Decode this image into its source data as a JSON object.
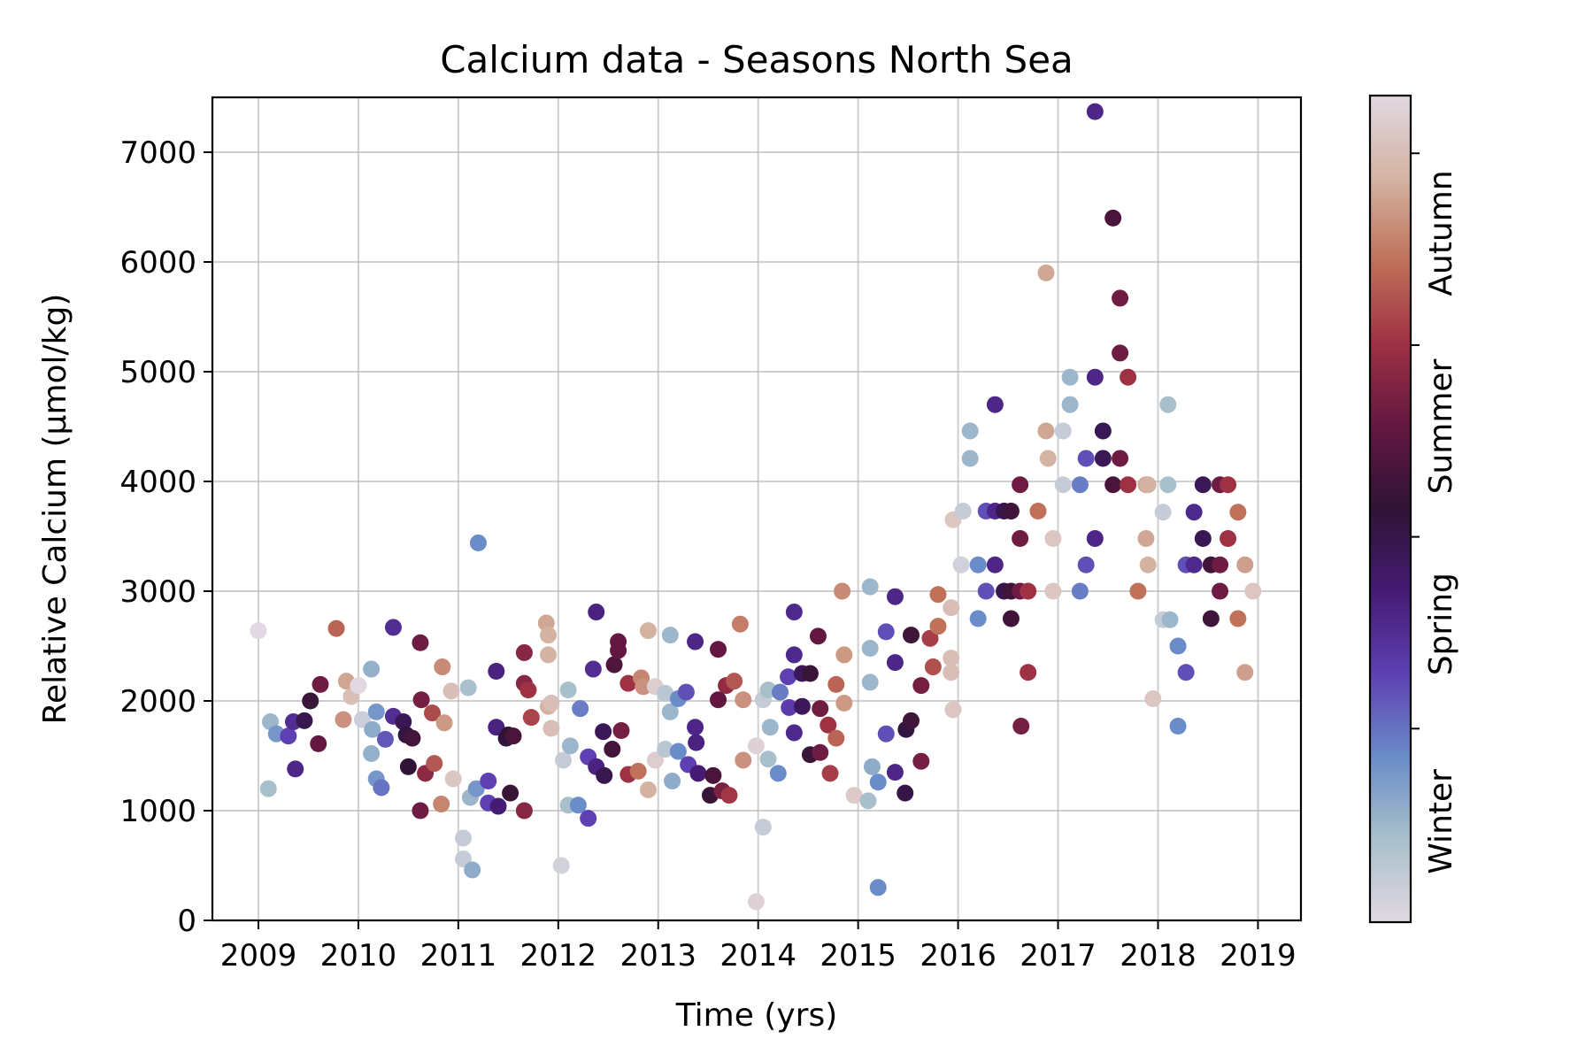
{
  "chart_data": {
    "type": "scatter",
    "title": "Calcium data - Seasons North Sea",
    "xlabel": "Time (yrs)",
    "ylabel": "Relative Calcium (µmol/kg)",
    "xlim": [
      2008.54,
      2019.43
    ],
    "ylim": [
      0,
      7500
    ],
    "xticks": [
      2009,
      2010,
      2011,
      2012,
      2013,
      2014,
      2015,
      2016,
      2017,
      2018,
      2019
    ],
    "yticks": [
      0,
      1000,
      2000,
      3000,
      4000,
      5000,
      6000,
      7000
    ],
    "grid": true,
    "colorbar": {
      "colormap": "twilight_shifted",
      "labels": [
        "Winter",
        "Spring",
        "Summer",
        "Autumn"
      ],
      "colors": [
        "#e1d8e1",
        "#a8c0cc",
        "#6a8cc8",
        "#5e40b2",
        "#451b74",
        "#2f1436",
        "#631741",
        "#9e3144",
        "#c07159",
        "#d4b3a3",
        "#e1d8e1"
      ]
    },
    "points": [
      [
        2009.0,
        2640
      ],
      [
        2009.1,
        1200
      ],
      [
        2009.12,
        1810
      ],
      [
        2009.18,
        1700
      ],
      [
        2009.3,
        1680
      ],
      [
        2009.35,
        1810
      ],
      [
        2009.37,
        1380
      ],
      [
        2009.46,
        1820
      ],
      [
        2009.52,
        2000
      ],
      [
        2009.6,
        1610
      ],
      [
        2009.62,
        2150
      ],
      [
        2009.78,
        2660
      ],
      [
        2009.85,
        1830
      ],
      [
        2009.88,
        2180
      ],
      [
        2009.93,
        2040
      ],
      [
        2010.0,
        2140
      ],
      [
        2010.04,
        1830
      ],
      [
        2010.13,
        2290
      ],
      [
        2010.13,
        1520
      ],
      [
        2010.14,
        1740
      ],
      [
        2010.18,
        1900
      ],
      [
        2010.18,
        1290
      ],
      [
        2010.23,
        1210
      ],
      [
        2010.27,
        1650
      ],
      [
        2010.35,
        2670
      ],
      [
        2010.35,
        1860
      ],
      [
        2010.45,
        1810
      ],
      [
        2010.48,
        1690
      ],
      [
        2010.5,
        1400
      ],
      [
        2010.54,
        1660
      ],
      [
        2010.62,
        2530
      ],
      [
        2010.63,
        2010
      ],
      [
        2010.62,
        1000
      ],
      [
        2010.67,
        1340
      ],
      [
        2010.74,
        1890
      ],
      [
        2010.76,
        1430
      ],
      [
        2010.84,
        2310
      ],
      [
        2010.86,
        1800
      ],
      [
        2010.83,
        1060
      ],
      [
        2010.93,
        2090
      ],
      [
        2010.95,
        1290
      ],
      [
        2011.05,
        750
      ],
      [
        2011.05,
        560
      ],
      [
        2011.1,
        2120
      ],
      [
        2011.12,
        1120
      ],
      [
        2011.14,
        460
      ],
      [
        2011.18,
        1200
      ],
      [
        2011.2,
        3440
      ],
      [
        2011.3,
        1270
      ],
      [
        2011.3,
        1070
      ],
      [
        2011.38,
        2270
      ],
      [
        2011.38,
        1760
      ],
      [
        2011.4,
        1040
      ],
      [
        2011.48,
        1660
      ],
      [
        2011.5,
        1690
      ],
      [
        2011.52,
        1160
      ],
      [
        2011.55,
        1680
      ],
      [
        2011.66,
        1000
      ],
      [
        2011.66,
        2440
      ],
      [
        2011.66,
        2160
      ],
      [
        2011.7,
        2100
      ],
      [
        2011.73,
        1850
      ],
      [
        2011.88,
        2710
      ],
      [
        2011.9,
        2600
      ],
      [
        2011.9,
        2420
      ],
      [
        2011.9,
        1950
      ],
      [
        2011.93,
        1750
      ],
      [
        2011.93,
        1980
      ],
      [
        2012.03,
        500
      ],
      [
        2012.05,
        1460
      ],
      [
        2012.1,
        2100
      ],
      [
        2012.1,
        1050
      ],
      [
        2012.12,
        1590
      ],
      [
        2012.2,
        1050
      ],
      [
        2012.22,
        1930
      ],
      [
        2012.3,
        930
      ],
      [
        2012.3,
        1490
      ],
      [
        2012.38,
        2810
      ],
      [
        2012.35,
        2290
      ],
      [
        2012.38,
        1400
      ],
      [
        2012.45,
        1720
      ],
      [
        2012.46,
        1320
      ],
      [
        2012.54,
        1560
      ],
      [
        2012.56,
        2330
      ],
      [
        2012.6,
        2540
      ],
      [
        2012.6,
        2460
      ],
      [
        2012.63,
        1730
      ],
      [
        2012.7,
        1330
      ],
      [
        2012.7,
        2160
      ],
      [
        2012.8,
        1360
      ],
      [
        2012.83,
        2210
      ],
      [
        2012.85,
        2130
      ],
      [
        2012.9,
        2640
      ],
      [
        2012.9,
        1190
      ],
      [
        2012.97,
        2130
      ],
      [
        2012.97,
        1460
      ],
      [
        2013.07,
        1560
      ],
      [
        2013.07,
        2070
      ],
      [
        2013.12,
        2600
      ],
      [
        2013.12,
        1900
      ],
      [
        2013.14,
        1270
      ],
      [
        2013.2,
        2020
      ],
      [
        2013.2,
        1540
      ],
      [
        2013.28,
        2080
      ],
      [
        2013.3,
        1420
      ],
      [
        2013.37,
        2540
      ],
      [
        2013.37,
        1760
      ],
      [
        2013.38,
        1620
      ],
      [
        2013.4,
        1340
      ],
      [
        2013.52,
        1140
      ],
      [
        2013.55,
        1320
      ],
      [
        2013.6,
        2470
      ],
      [
        2013.6,
        2010
      ],
      [
        2013.64,
        1180
      ],
      [
        2013.68,
        2140
      ],
      [
        2013.71,
        1140
      ],
      [
        2013.76,
        2180
      ],
      [
        2013.82,
        2700
      ],
      [
        2013.85,
        2010
      ],
      [
        2013.85,
        1460
      ],
      [
        2013.98,
        170
      ],
      [
        2013.98,
        1590
      ],
      [
        2014.05,
        850
      ],
      [
        2014.05,
        2010
      ],
      [
        2014.1,
        2100
      ],
      [
        2014.1,
        1470
      ],
      [
        2014.12,
        1760
      ],
      [
        2014.2,
        1340
      ],
      [
        2014.22,
        2080
      ],
      [
        2014.3,
        2220
      ],
      [
        2014.31,
        1940
      ],
      [
        2014.36,
        2810
      ],
      [
        2014.36,
        2420
      ],
      [
        2014.36,
        1710
      ],
      [
        2014.44,
        2250
      ],
      [
        2014.44,
        1950
      ],
      [
        2014.52,
        2250
      ],
      [
        2014.52,
        1510
      ],
      [
        2014.6,
        2590
      ],
      [
        2014.62,
        1930
      ],
      [
        2014.62,
        1530
      ],
      [
        2014.7,
        1780
      ],
      [
        2014.72,
        1340
      ],
      [
        2014.78,
        2150
      ],
      [
        2014.78,
        1660
      ],
      [
        2014.84,
        3000
      ],
      [
        2014.86,
        2420
      ],
      [
        2014.86,
        1980
      ],
      [
        2014.96,
        1140
      ],
      [
        2015.1,
        1090
      ],
      [
        2015.12,
        3040
      ],
      [
        2015.12,
        2480
      ],
      [
        2015.12,
        2170
      ],
      [
        2015.14,
        1400
      ],
      [
        2015.2,
        300
      ],
      [
        2015.2,
        1260
      ],
      [
        2015.28,
        2630
      ],
      [
        2015.28,
        1700
      ],
      [
        2015.37,
        2950
      ],
      [
        2015.37,
        2350
      ],
      [
        2015.37,
        1350
      ],
      [
        2015.47,
        1160
      ],
      [
        2015.48,
        1740
      ],
      [
        2015.53,
        2600
      ],
      [
        2015.53,
        1820
      ],
      [
        2015.63,
        2140
      ],
      [
        2015.63,
        1450
      ],
      [
        2015.72,
        2570
      ],
      [
        2015.75,
        2310
      ],
      [
        2015.8,
        2970
      ],
      [
        2015.8,
        2680
      ],
      [
        2015.93,
        2390
      ],
      [
        2015.93,
        2850
      ],
      [
        2015.93,
        2260
      ],
      [
        2015.95,
        1920
      ],
      [
        2015.95,
        3650
      ],
      [
        2016.03,
        3240
      ],
      [
        2016.05,
        3730
      ],
      [
        2016.12,
        4460
      ],
      [
        2016.12,
        4210
      ],
      [
        2016.2,
        3240
      ],
      [
        2016.2,
        2750
      ],
      [
        2016.28,
        3000
      ],
      [
        2016.28,
        3730
      ],
      [
        2016.37,
        3730
      ],
      [
        2016.37,
        3240
      ],
      [
        2016.37,
        4700
      ],
      [
        2016.46,
        3730
      ],
      [
        2016.46,
        3000
      ],
      [
        2016.53,
        3730
      ],
      [
        2016.53,
        3000
      ],
      [
        2016.53,
        2750
      ],
      [
        2016.62,
        3970
      ],
      [
        2016.62,
        3000
      ],
      [
        2016.62,
        3480
      ],
      [
        2016.63,
        1770
      ],
      [
        2016.7,
        2260
      ],
      [
        2016.7,
        3000
      ],
      [
        2016.8,
        3730
      ],
      [
        2016.88,
        5900
      ],
      [
        2016.88,
        4460
      ],
      [
        2016.9,
        4210
      ],
      [
        2016.95,
        3480
      ],
      [
        2016.95,
        3000
      ],
      [
        2017.05,
        4460
      ],
      [
        2017.05,
        3970
      ],
      [
        2017.12,
        4950
      ],
      [
        2017.12,
        4700
      ],
      [
        2017.22,
        3970
      ],
      [
        2017.22,
        3000
      ],
      [
        2017.28,
        3240
      ],
      [
        2017.28,
        4210
      ],
      [
        2017.37,
        7370
      ],
      [
        2017.37,
        4950
      ],
      [
        2017.37,
        3480
      ],
      [
        2017.45,
        4460
      ],
      [
        2017.45,
        4210
      ],
      [
        2017.55,
        6400
      ],
      [
        2017.55,
        3970
      ],
      [
        2017.62,
        5670
      ],
      [
        2017.62,
        5170
      ],
      [
        2017.62,
        4210
      ],
      [
        2017.7,
        4950
      ],
      [
        2017.7,
        3970
      ],
      [
        2017.8,
        3000
      ],
      [
        2017.88,
        3480
      ],
      [
        2017.88,
        3970
      ],
      [
        2017.9,
        3240
      ],
      [
        2017.9,
        3970
      ],
      [
        2017.95,
        2020
      ],
      [
        2018.05,
        3720
      ],
      [
        2018.05,
        2740
      ],
      [
        2018.1,
        4700
      ],
      [
        2018.1,
        3970
      ],
      [
        2018.12,
        2740
      ],
      [
        2018.2,
        2500
      ],
      [
        2018.2,
        1770
      ],
      [
        2018.28,
        3240
      ],
      [
        2018.28,
        2260
      ],
      [
        2018.36,
        3720
      ],
      [
        2018.36,
        3240
      ],
      [
        2018.45,
        3970
      ],
      [
        2018.45,
        3480
      ],
      [
        2018.53,
        3240
      ],
      [
        2018.53,
        2750
      ],
      [
        2018.62,
        3970
      ],
      [
        2018.62,
        3240
      ],
      [
        2018.62,
        3000
      ],
      [
        2018.7,
        3970
      ],
      [
        2018.7,
        3480
      ],
      [
        2018.8,
        3720
      ],
      [
        2018.8,
        2750
      ],
      [
        2018.87,
        3240
      ],
      [
        2018.87,
        2260
      ],
      [
        2018.95,
        3000
      ]
    ]
  }
}
